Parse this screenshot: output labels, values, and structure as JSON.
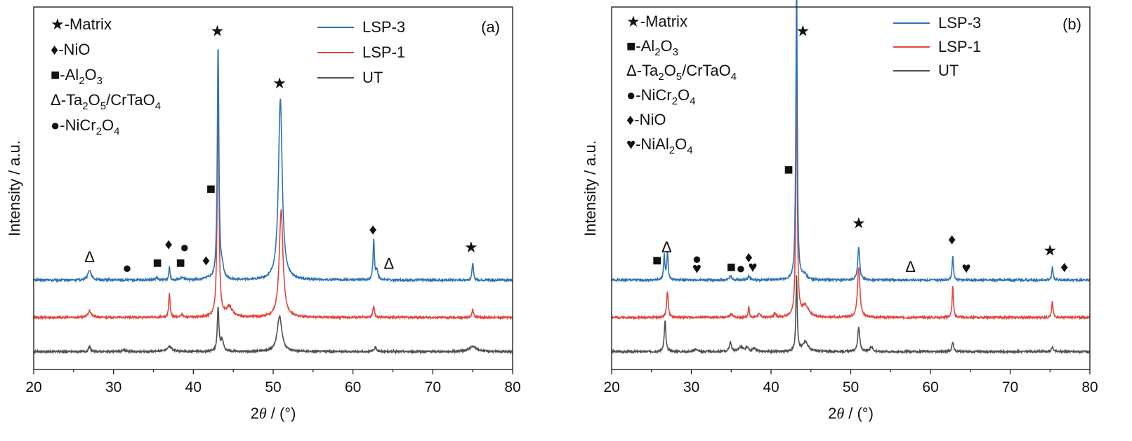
{
  "colors": {
    "LSP-3": "#2f73b7",
    "LSP-1": "#e0463d",
    "UT": "#505050"
  },
  "chart_data": [
    {
      "type": "line",
      "panel": "(a)",
      "xlabel_prefix": "2",
      "xlabel_theta": "θ",
      "xlabel_suffix": " / (°)",
      "ylabel": "Intensity / a.u.",
      "xlim": [
        20,
        80
      ],
      "xticks": [
        20,
        30,
        40,
        50,
        60,
        70,
        80
      ],
      "yticks_shown": false,
      "legend_position": "top-right",
      "phase_legend": [
        {
          "symbol": "★",
          "label": "-Matrix"
        },
        {
          "symbol": "♦",
          "label": "-NiO"
        },
        {
          "symbol": "■",
          "label": "-Al",
          "sub1": "2",
          "mid": "O",
          "sub2": "3"
        },
        {
          "symbol": "Δ",
          "label": "-Ta",
          "sub1": "2",
          "mid": "O",
          "sub2": "5",
          "tail": "/CrTaO",
          "sub3": "4"
        },
        {
          "symbol": "●",
          "label": "-NiCr",
          "sub1": "2",
          "mid": "O",
          "sub2": "4"
        }
      ],
      "series": [
        {
          "name": "LSP-3",
          "offset": 2.2,
          "baseline": 0.0,
          "peaks": [
            [
              27.0,
              0.32,
              0.25
            ],
            [
              35.4,
              0.06,
              0.2
            ],
            [
              37.0,
              0.45,
              0.08
            ],
            [
              38.6,
              0.08,
              0.2
            ],
            [
              41.8,
              0.05,
              0.3
            ],
            [
              43.1,
              7.2,
              0.12
            ],
            [
              43.6,
              0.3,
              0.2
            ],
            [
              50.9,
              5.6,
              0.28
            ],
            [
              62.6,
              1.25,
              0.1
            ],
            [
              63.0,
              0.3,
              0.15
            ],
            [
              75.0,
              0.55,
              0.1
            ]
          ]
        },
        {
          "name": "LSP-1",
          "offset": 1.05,
          "baseline": 0.0,
          "peaks": [
            [
              27.0,
              0.2,
              0.25
            ],
            [
              37.0,
              0.75,
              0.1
            ],
            [
              38.5,
              0.08,
              0.2
            ],
            [
              43.1,
              7.2,
              0.12
            ],
            [
              44.5,
              0.3,
              0.5
            ],
            [
              51.0,
              3.3,
              0.28
            ],
            [
              62.6,
              0.35,
              0.12
            ],
            [
              75.0,
              0.25,
              0.12
            ]
          ]
        },
        {
          "name": "UT",
          "offset": 0.0,
          "baseline": 0.0,
          "peaks": [
            [
              27.0,
              0.15,
              0.15
            ],
            [
              31.3,
              0.04,
              0.3
            ],
            [
              37.0,
              0.15,
              0.4
            ],
            [
              43.1,
              1.35,
              0.12
            ],
            [
              43.6,
              0.35,
              0.2
            ],
            [
              50.8,
              1.1,
              0.35
            ],
            [
              62.8,
              0.12,
              0.2
            ],
            [
              75.0,
              0.15,
              0.6
            ]
          ]
        }
      ],
      "markers": [
        {
          "symbol": "Δ",
          "x": 27.0,
          "y": 2.75
        },
        {
          "symbol": "●",
          "x": 31.7,
          "y": 2.42
        },
        {
          "symbol": "■",
          "x": 35.5,
          "y": 2.58,
          "big": true
        },
        {
          "symbol": "♦",
          "x": 36.9,
          "y": 3.15
        },
        {
          "symbol": "●",
          "x": 38.9,
          "y": 3.05
        },
        {
          "symbol": "■",
          "x": 38.4,
          "y": 2.58,
          "big": true
        },
        {
          "symbol": "♦",
          "x": 41.6,
          "y": 2.65
        },
        {
          "symbol": "■",
          "x": 42.2,
          "y": 4.85,
          "big": true
        },
        {
          "symbol": "★",
          "x": 43.0,
          "y": 9.7
        },
        {
          "symbol": "★",
          "x": 50.8,
          "y": 8.1
        },
        {
          "symbol": "♦",
          "x": 62.5,
          "y": 3.6
        },
        {
          "symbol": "Δ",
          "x": 64.5,
          "y": 2.55
        },
        {
          "symbol": "★",
          "x": 74.8,
          "y": 3.05
        }
      ]
    },
    {
      "type": "line",
      "panel": "(b)",
      "xlabel_prefix": "2",
      "xlabel_theta": "θ",
      "xlabel_suffix": " / (°)",
      "ylabel": "Intensity / a.u.",
      "xlim": [
        20,
        80
      ],
      "xticks": [
        20,
        30,
        40,
        50,
        60,
        70,
        80
      ],
      "yticks_shown": false,
      "legend_position": "top-right",
      "phase_legend": [
        {
          "symbol": "★",
          "label": "-Matrix"
        },
        {
          "symbol": "■",
          "label": "-Al",
          "sub1": "2",
          "mid": "O",
          "sub2": "3"
        },
        {
          "symbol": "Δ",
          "label": "-Ta",
          "sub1": "2",
          "mid": "O",
          "sub2": "5",
          "tail": "/CrTaO",
          "sub3": "4"
        },
        {
          "symbol": "●",
          "label": "-NiCr",
          "sub1": "2",
          "mid": "O",
          "sub2": "4"
        },
        {
          "symbol": "♦",
          "label": "-NiO"
        },
        {
          "symbol": "♥",
          "label": "-NiAl",
          "sub1": "2",
          "mid": "O",
          "sub2": "4"
        }
      ],
      "series": [
        {
          "name": "LSP-3",
          "offset": 2.2,
          "baseline": 0.0,
          "peaks": [
            [
              26.6,
              0.75,
              0.1
            ],
            [
              27.0,
              0.85,
              0.1
            ],
            [
              34.9,
              0.15,
              0.15
            ],
            [
              37.2,
              0.12,
              0.15
            ],
            [
              43.2,
              9.6,
              0.1
            ],
            [
              44.2,
              0.15,
              0.3
            ],
            [
              51.0,
              1.0,
              0.15
            ],
            [
              62.8,
              0.75,
              0.1
            ],
            [
              75.3,
              0.4,
              0.1
            ]
          ]
        },
        {
          "name": "LSP-1",
          "offset": 1.05,
          "baseline": 0.0,
          "peaks": [
            [
              27.0,
              0.8,
              0.12
            ],
            [
              35.0,
              0.1,
              0.2
            ],
            [
              37.2,
              0.35,
              0.08
            ],
            [
              38.5,
              0.1,
              0.2
            ],
            [
              40.5,
              0.12,
              0.15
            ],
            [
              43.2,
              8.0,
              0.1
            ],
            [
              44.3,
              0.35,
              0.5
            ],
            [
              51.0,
              1.55,
              0.18
            ],
            [
              62.8,
              0.95,
              0.1
            ],
            [
              75.3,
              0.5,
              0.1
            ]
          ]
        },
        {
          "name": "UT",
          "offset": 0.0,
          "baseline": 0.0,
          "peaks": [
            [
              26.7,
              0.95,
              0.12
            ],
            [
              30.6,
              0.08,
              0.2
            ],
            [
              34.9,
              0.3,
              0.15
            ],
            [
              36.2,
              0.15,
              0.3
            ],
            [
              37.0,
              0.12,
              0.2
            ],
            [
              37.9,
              0.1,
              0.2
            ],
            [
              43.2,
              2.3,
              0.1
            ],
            [
              44.3,
              0.3,
              0.4
            ],
            [
              51.0,
              0.75,
              0.15
            ],
            [
              52.6,
              0.15,
              0.2
            ],
            [
              62.8,
              0.3,
              0.12
            ],
            [
              75.3,
              0.15,
              0.12
            ]
          ]
        }
      ],
      "markers": [
        {
          "symbol": "■",
          "x": 25.7,
          "y": 2.65
        },
        {
          "symbol": "Δ",
          "x": 26.9,
          "y": 3.05
        },
        {
          "symbol": "●",
          "x": 30.7,
          "y": 2.7
        },
        {
          "symbol": "♥",
          "x": 30.7,
          "y": 2.4
        },
        {
          "symbol": "■",
          "x": 35.0,
          "y": 2.45
        },
        {
          "symbol": "●",
          "x": 36.2,
          "y": 2.4
        },
        {
          "symbol": "♦",
          "x": 37.2,
          "y": 2.75
        },
        {
          "symbol": "♥",
          "x": 37.7,
          "y": 2.45
        },
        {
          "symbol": "■",
          "x": 42.2,
          "y": 5.45
        },
        {
          "symbol": "★",
          "x": 44.0,
          "y": 9.7
        },
        {
          "symbol": "★",
          "x": 51.0,
          "y": 3.8
        },
        {
          "symbol": "Δ",
          "x": 57.5,
          "y": 2.45
        },
        {
          "symbol": "♦",
          "x": 62.7,
          "y": 3.3
        },
        {
          "symbol": "♥",
          "x": 64.5,
          "y": 2.42
        },
        {
          "symbol": "★",
          "x": 75.0,
          "y": 2.95
        },
        {
          "symbol": "♦",
          "x": 76.8,
          "y": 2.45
        }
      ]
    }
  ]
}
